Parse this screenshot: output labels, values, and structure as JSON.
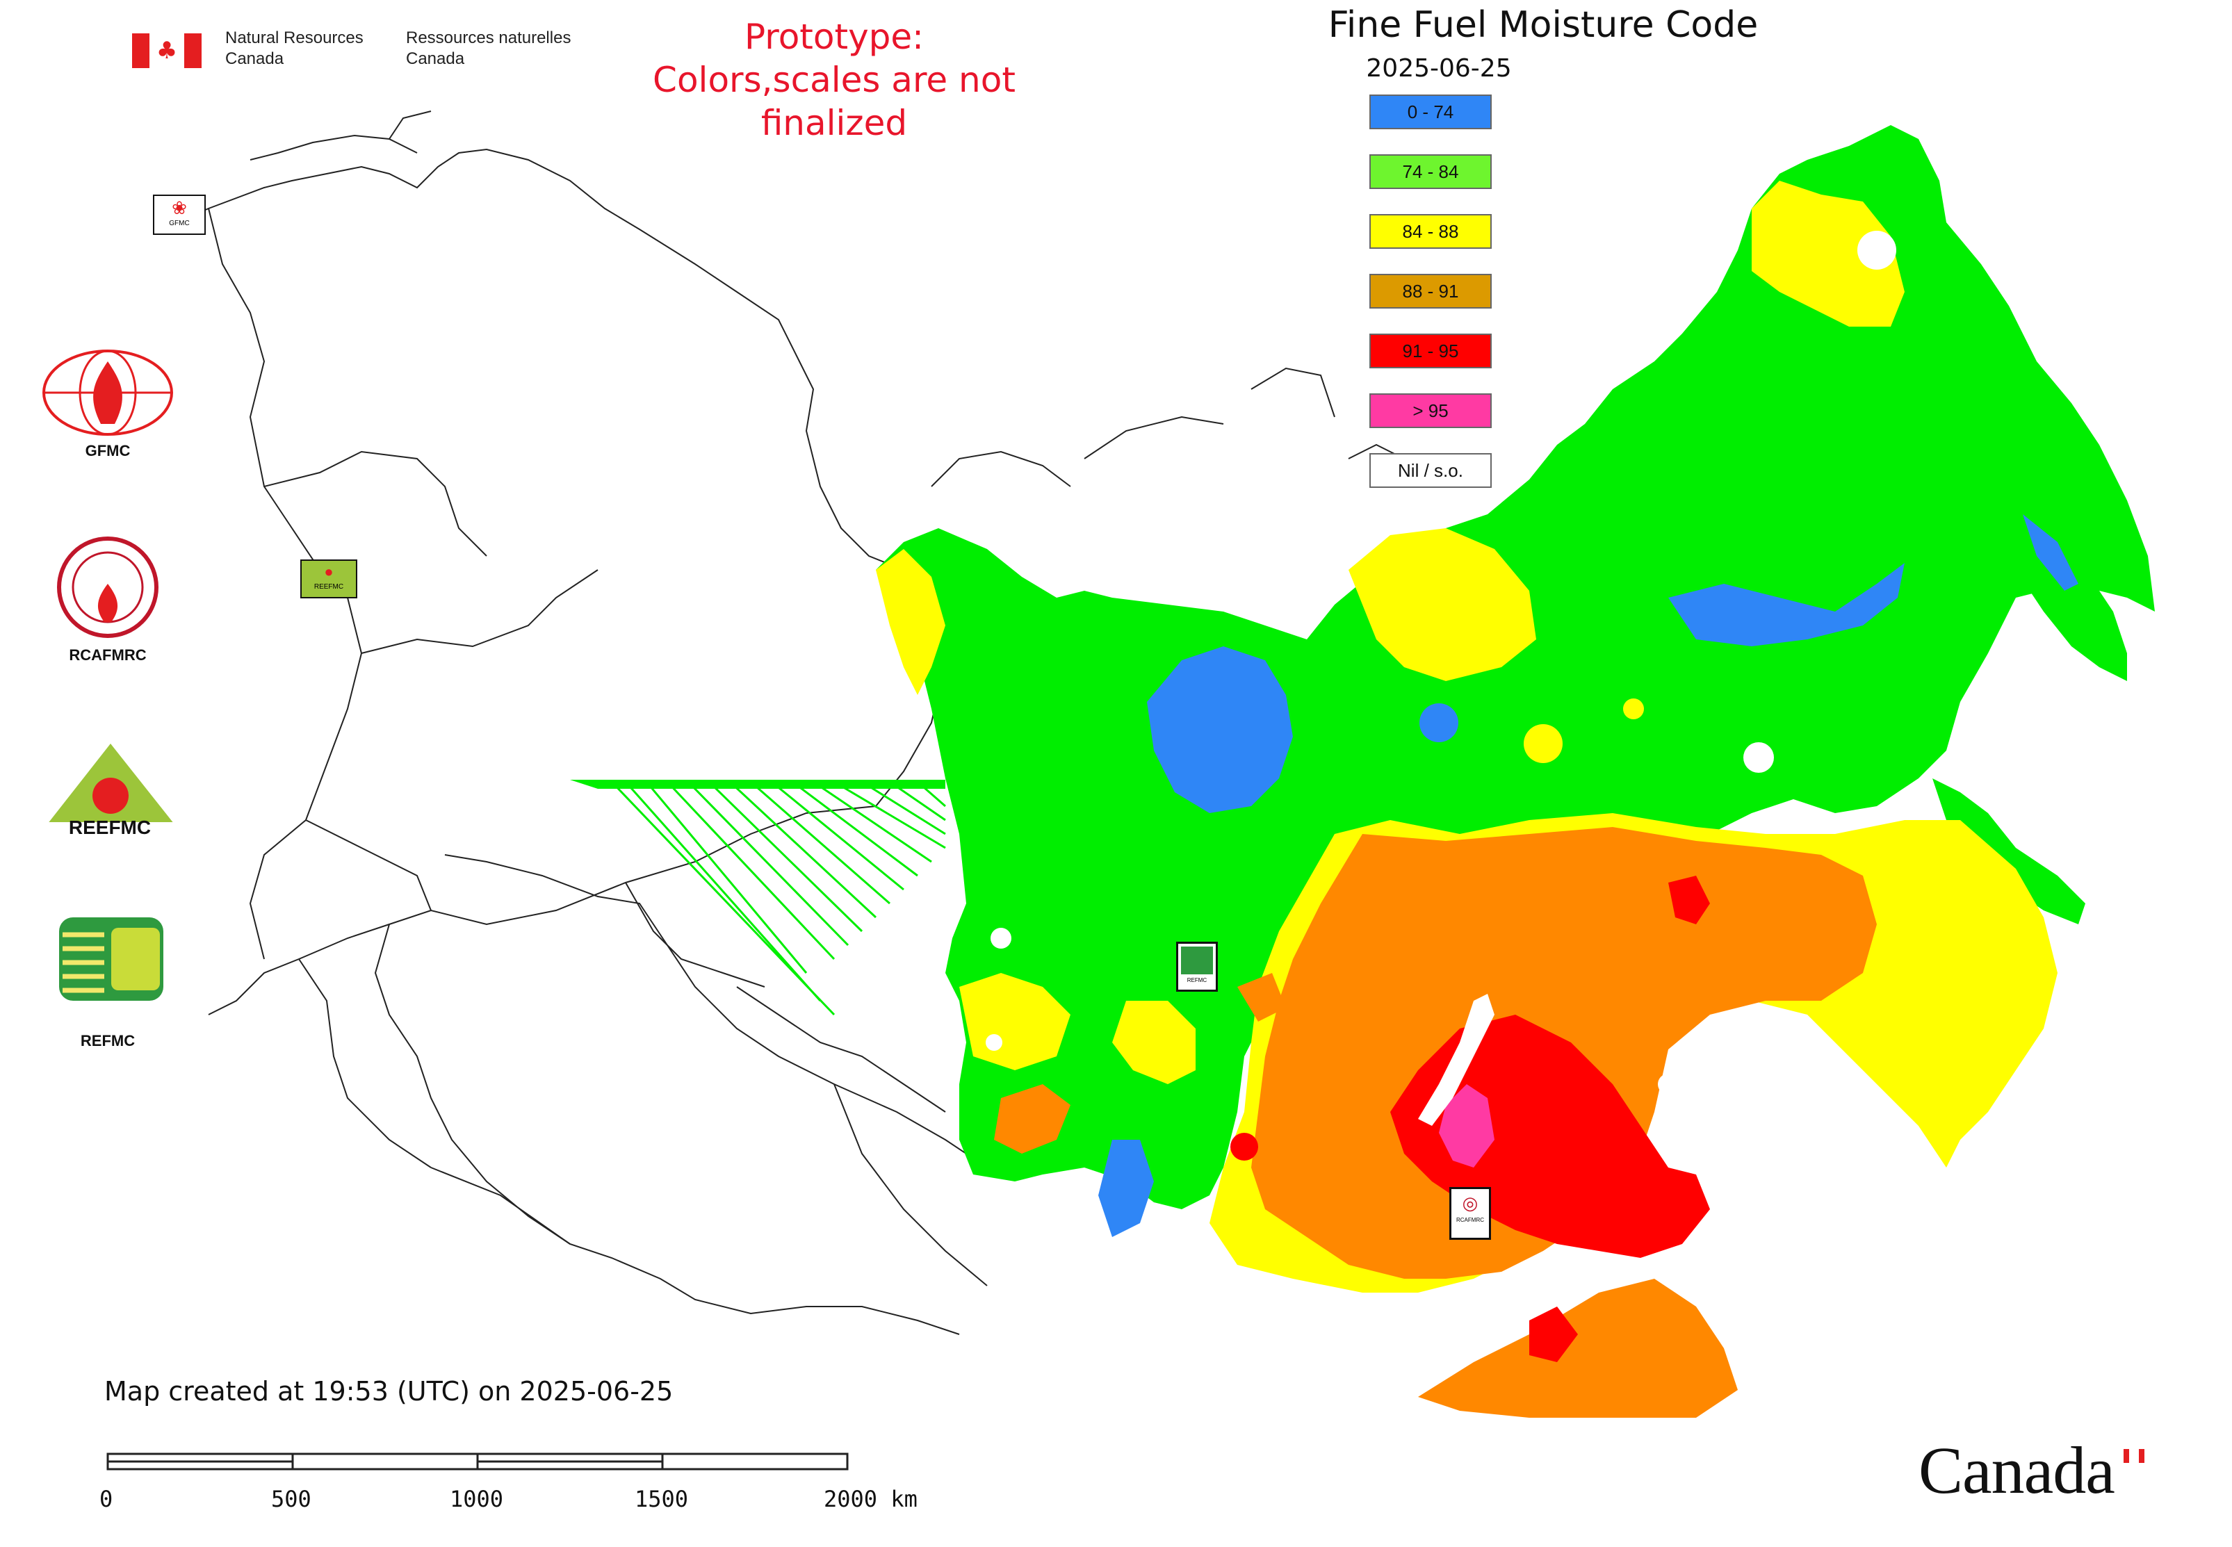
{
  "header": {
    "agency_en_line1": "Natural Resources",
    "agency_en_line2": "Canada",
    "agency_fr_line1": "Ressources naturelles",
    "agency_fr_line2": "Canada",
    "prototype_line1": "Prototype:",
    "prototype_line2": "Colors,scales are not finalized",
    "title": "Fine Fuel Moisture Code",
    "date": "2025-06-25"
  },
  "legend": [
    {
      "label": "0 - 74",
      "color": "#2f86f6"
    },
    {
      "label": "74 - 84",
      "color": "#6ef52e"
    },
    {
      "label": "84 - 88",
      "color": "#ffff00"
    },
    {
      "label": "88 - 91",
      "color": "#dc9a00"
    },
    {
      "label": "91 - 95",
      "color": "#ff0000"
    },
    {
      "label": "> 95",
      "color": "#ff3aa3"
    },
    {
      "label": "Nil / s.o.",
      "color": "#ffffff"
    }
  ],
  "partners": [
    {
      "name": "GFMC"
    },
    {
      "name": "RCAFMRC"
    },
    {
      "name": "REEFMC"
    },
    {
      "name": "REFMC"
    }
  ],
  "map_markers": {
    "gfmc": "GFMC",
    "reefmc": "REEFMC",
    "refmc": "REFMC",
    "rcafmrc": "RCAFMRC"
  },
  "footer": {
    "created": "Map created at 19:53 (UTC) on 2025-06-25",
    "scale_ticks": [
      "0",
      "500",
      "1000",
      "1500",
      "2000 km"
    ],
    "wordmark": "Canada"
  },
  "colors": {
    "blue": "#2f86f6",
    "green": "#00ee00",
    "yellow": "#ffff00",
    "orange": "#ff8800",
    "red": "#ff0000",
    "magenta": "#ff3aa3"
  }
}
